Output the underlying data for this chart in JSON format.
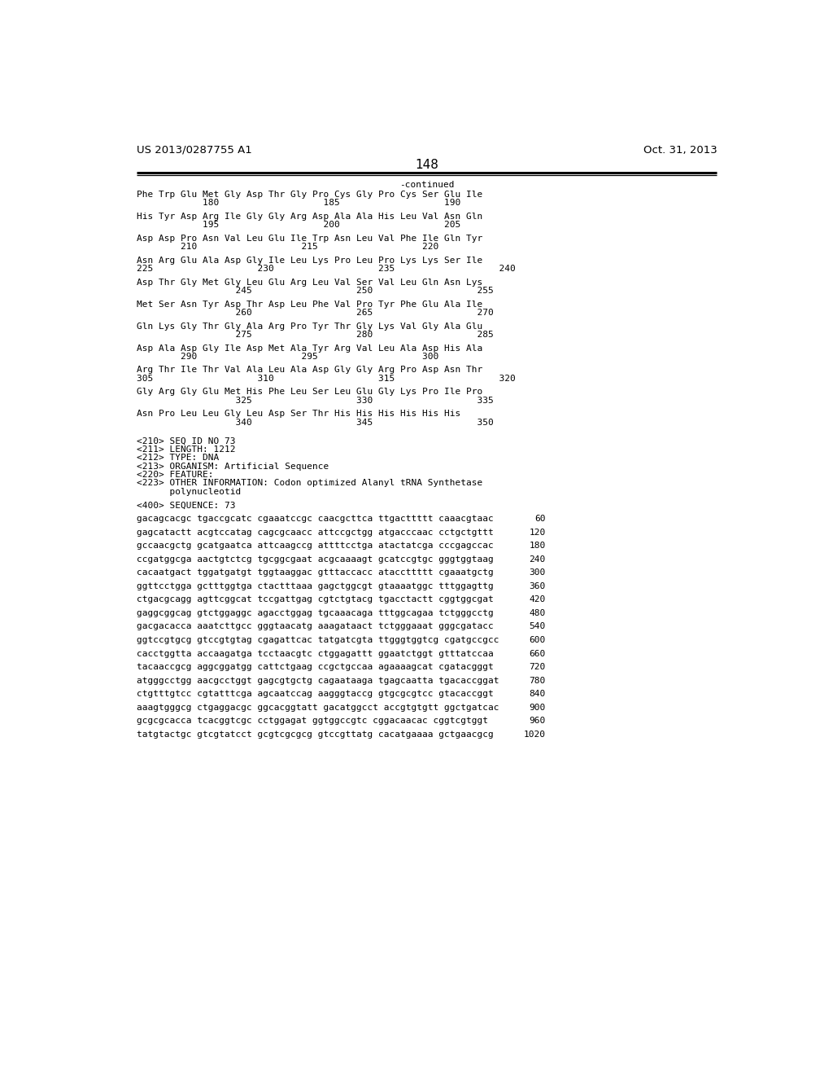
{
  "header_left": "US 2013/0287755 A1",
  "header_right": "Oct. 31, 2013",
  "page_number": "148",
  "continued": "-continued",
  "background_color": "#ffffff",
  "text_color": "#000000",
  "header_font_size": 9.5,
  "mono_font_size": 8.0,
  "page_num_font_size": 11,
  "content_lines": [
    {
      "type": "aa_seq",
      "seq": "Phe Trp Glu Met Gly Asp Thr Gly Pro Cys Gly Pro Cys Ser Glu Ile",
      "nums": "            180                   185                   190"
    },
    {
      "type": "blank"
    },
    {
      "type": "aa_seq",
      "seq": "His Tyr Asp Arg Ile Gly Gly Arg Asp Ala Ala His Leu Val Asn Gln",
      "nums": "            195                   200                   205"
    },
    {
      "type": "blank"
    },
    {
      "type": "aa_seq",
      "seq": "Asp Asp Pro Asn Val Leu Glu Ile Trp Asn Leu Val Phe Ile Gln Tyr",
      "nums": "        210                   215                   220"
    },
    {
      "type": "blank"
    },
    {
      "type": "aa_seq",
      "seq": "Asn Arg Glu Ala Asp Gly Ile Leu Lys Pro Leu Pro Lys Lys Ser Ile",
      "nums": "225                   230                   235                   240"
    },
    {
      "type": "blank"
    },
    {
      "type": "aa_seq",
      "seq": "Asp Thr Gly Met Gly Leu Glu Arg Leu Val Ser Val Leu Gln Asn Lys",
      "nums": "                  245                   250                   255"
    },
    {
      "type": "blank"
    },
    {
      "type": "aa_seq",
      "seq": "Met Ser Asn Tyr Asp Thr Asp Leu Phe Val Pro Tyr Phe Glu Ala Ile",
      "nums": "                  260                   265                   270"
    },
    {
      "type": "blank"
    },
    {
      "type": "aa_seq",
      "seq": "Gln Lys Gly Thr Gly Ala Arg Pro Tyr Thr Gly Lys Val Gly Ala Glu",
      "nums": "                  275                   280                   285"
    },
    {
      "type": "blank"
    },
    {
      "type": "aa_seq",
      "seq": "Asp Ala Asp Gly Ile Asp Met Ala Tyr Arg Val Leu Ala Asp His Ala",
      "nums": "        290                   295                   300"
    },
    {
      "type": "blank"
    },
    {
      "type": "aa_seq",
      "seq": "Arg Thr Ile Thr Val Ala Leu Ala Asp Gly Gly Arg Pro Asp Asn Thr",
      "nums": "305                   310                   315                   320"
    },
    {
      "type": "blank"
    },
    {
      "type": "aa_seq",
      "seq": "Gly Arg Gly Glu Met His Phe Leu Ser Leu Glu Gly Lys Pro Ile Pro",
      "nums": "                  325                   330                   335"
    },
    {
      "type": "blank"
    },
    {
      "type": "aa_seq",
      "seq": "Asn Pro Leu Leu Gly Leu Asp Ser Thr His His His His His His",
      "nums": "                  340                   345                   350"
    },
    {
      "type": "blank"
    },
    {
      "type": "blank"
    },
    {
      "type": "meta",
      "seq": "<210> SEQ ID NO 73"
    },
    {
      "type": "meta",
      "seq": "<211> LENGTH: 1212"
    },
    {
      "type": "meta",
      "seq": "<212> TYPE: DNA"
    },
    {
      "type": "meta",
      "seq": "<213> ORGANISM: Artificial Sequence"
    },
    {
      "type": "meta",
      "seq": "<220> FEATURE:"
    },
    {
      "type": "meta",
      "seq": "<223> OTHER INFORMATION: Codon optimized Alanyl tRNA Synthetase"
    },
    {
      "type": "meta",
      "seq": "      polynucleotid"
    },
    {
      "type": "blank"
    },
    {
      "type": "meta",
      "seq": "<400> SEQUENCE: 73"
    },
    {
      "type": "blank"
    },
    {
      "type": "dna_seq",
      "seq": "gacagcacgc tgaccgcatc cgaaatccgc caacgcttca ttgacttttt caaacgtaac",
      "num": "60"
    },
    {
      "type": "blank"
    },
    {
      "type": "dna_seq",
      "seq": "gagcatactt acgtccatag cagcgcaacc attccgctgg atgacccaac cctgctgttt",
      "num": "120"
    },
    {
      "type": "blank"
    },
    {
      "type": "dna_seq",
      "seq": "gccaacgctg gcatgaatca attcaagccg attttcctga atactatcga cccgagccac",
      "num": "180"
    },
    {
      "type": "blank"
    },
    {
      "type": "dna_seq",
      "seq": "ccgatggcga aactgtctcg tgcggcgaat acgcaaaagt gcatccgtgc gggtggtaag",
      "num": "240"
    },
    {
      "type": "blank"
    },
    {
      "type": "dna_seq",
      "seq": "cacaatgact tggatgatgt tggtaaggac gtttaccacc ataccttttt cgaaatgctg",
      "num": "300"
    },
    {
      "type": "blank"
    },
    {
      "type": "dna_seq",
      "seq": "ggttcctgga gctttggtga ctactttaaa gagctggcgt gtaaaatggc tttggagttg",
      "num": "360"
    },
    {
      "type": "blank"
    },
    {
      "type": "dna_seq",
      "seq": "ctgacgcagg agttcggcat tccgattgag cgtctgtacg tgacctactt cggtggcgat",
      "num": "420"
    },
    {
      "type": "blank"
    },
    {
      "type": "dna_seq",
      "seq": "gaggcggcag gtctggaggc agacctggag tgcaaacaga tttggcagaa tctgggcctg",
      "num": "480"
    },
    {
      "type": "blank"
    },
    {
      "type": "dna_seq",
      "seq": "gacgacacca aaatcttgcc gggtaacatg aaagataact tctgggaaat gggcgatacc",
      "num": "540"
    },
    {
      "type": "blank"
    },
    {
      "type": "dna_seq",
      "seq": "ggtccgtgcg gtccgtgtag cgagattcac tatgatcgta ttgggtggtcg cgatgccgcc",
      "num": "600"
    },
    {
      "type": "blank"
    },
    {
      "type": "dna_seq",
      "seq": "cacctggtta accaagatga tcctaacgtc ctggagattt ggaatctggt gtttatccaa",
      "num": "660"
    },
    {
      "type": "blank"
    },
    {
      "type": "dna_seq",
      "seq": "tacaaccgcg aggcggatgg cattctgaag ccgctgccaa agaaaagcat cgatacgggt",
      "num": "720"
    },
    {
      "type": "blank"
    },
    {
      "type": "dna_seq",
      "seq": "atgggcctgg aacgcctggt gagcgtgctg cagaataaga tgagcaatta tgacaccggat",
      "num": "780"
    },
    {
      "type": "blank"
    },
    {
      "type": "dna_seq",
      "seq": "ctgtttgtcc cgtatttcga agcaatccag aagggtaccg gtgcgcgtcc gtacaccggt",
      "num": "840"
    },
    {
      "type": "blank"
    },
    {
      "type": "dna_seq",
      "seq": "aaagtgggcg ctgaggacgc ggcacggtatt gacatggcct accgtgtgtt ggctgatcac",
      "num": "900"
    },
    {
      "type": "blank"
    },
    {
      "type": "dna_seq",
      "seq": "gcgcgcacca tcacggtcgc cctggagat ggtggccgtc cggacaacac cggtcgtggt",
      "num": "960"
    },
    {
      "type": "blank"
    },
    {
      "type": "dna_seq",
      "seq": "tatgtactgc gtcgtatcct gcgtcgcgcg gtccgttatg cacatgaaaa gctgaacgcg",
      "num": "1020"
    }
  ]
}
